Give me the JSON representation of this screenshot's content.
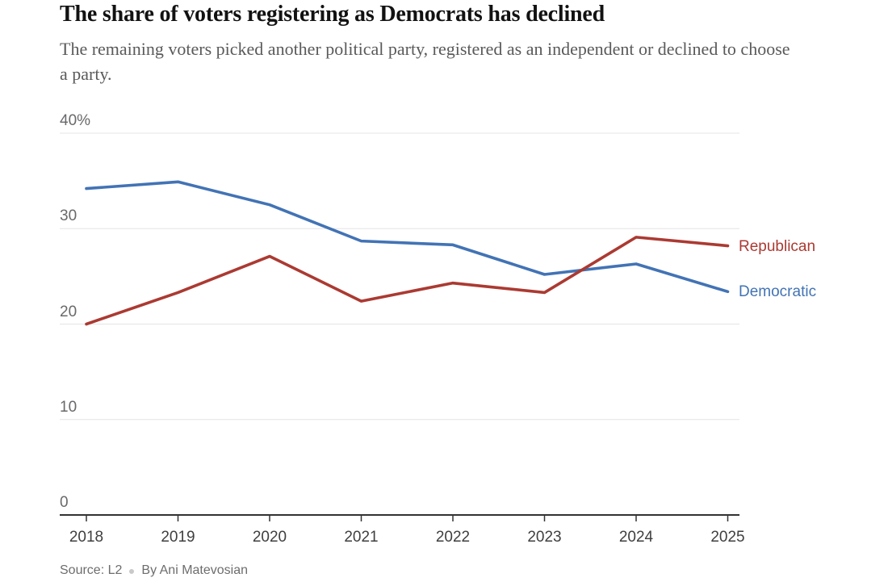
{
  "header": {
    "title": "The share of voters registering as Democrats has declined",
    "subtitle": "The remaining voters picked another political party, registered as an independent or declined to choose a party."
  },
  "chart_data": {
    "type": "line",
    "x": [
      2018,
      2019,
      2020,
      2021,
      2022,
      2023,
      2024,
      2025
    ],
    "series": [
      {
        "name": "Democratic",
        "color": "#4273b5",
        "values": [
          34.2,
          34.9,
          32.5,
          28.7,
          28.3,
          25.2,
          26.3,
          23.4
        ]
      },
      {
        "name": "Republican",
        "color": "#ab3a32",
        "values": [
          20.0,
          23.3,
          27.1,
          22.4,
          24.3,
          23.3,
          29.1,
          28.2
        ]
      }
    ],
    "ylim": [
      0,
      40
    ],
    "yticks": [
      {
        "value": 0,
        "label": "0"
      },
      {
        "value": 10,
        "label": "10"
      },
      {
        "value": 20,
        "label": "20"
      },
      {
        "value": 30,
        "label": "30"
      },
      {
        "value": 40,
        "label": "40%"
      }
    ],
    "grid": "horizontal",
    "legend_position": "right-of-line-ends",
    "colors": {
      "grid": "#e4e4e4",
      "axis": "#333333"
    }
  },
  "footer": {
    "source": "Source: L2",
    "byline": "By Ani Matevosian"
  }
}
